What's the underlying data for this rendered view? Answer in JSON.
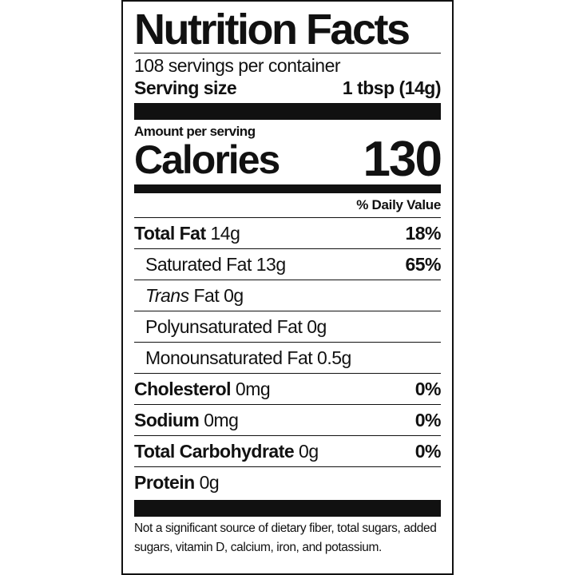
{
  "title": "Nutrition Facts",
  "servings": "108 servings per container",
  "serving_size": {
    "label": "Serving size",
    "value": "1 tbsp (14g)"
  },
  "amount_per_serving": "Amount per serving",
  "calories": {
    "label": "Calories",
    "value": "130"
  },
  "daily_value_header": "% Daily Value",
  "rows": [
    {
      "name": "Total Fat",
      "amount": "14g",
      "dv": "18%",
      "bold": true,
      "indent": false
    },
    {
      "name": "Saturated Fat",
      "amount": "13g",
      "dv": "65%",
      "bold": false,
      "indent": true
    },
    {
      "italic": "Trans",
      "name": "Fat",
      "amount": "0g",
      "bold": false,
      "indent": true
    },
    {
      "name": "Polyunsaturated Fat",
      "amount": "0g",
      "bold": false,
      "indent": true
    },
    {
      "name": "Monounsaturated Fat",
      "amount": "0.5g",
      "bold": false,
      "indent": true
    },
    {
      "name": "Cholesterol",
      "amount": "0mg",
      "dv": "0%",
      "bold": true,
      "indent": false
    },
    {
      "name": "Sodium",
      "amount": "0mg",
      "dv": "0%",
      "bold": true,
      "indent": false
    },
    {
      "name": "Total Carbohydrate",
      "amount": "0g",
      "dv": "0%",
      "bold": true,
      "indent": false
    },
    {
      "name": "Protein",
      "amount": "0g",
      "bold": true,
      "indent": false
    }
  ],
  "footnote": "Not a significant source of dietary fiber, total sugars, added sugars, vitamin D, calcium, iron, and potassium."
}
